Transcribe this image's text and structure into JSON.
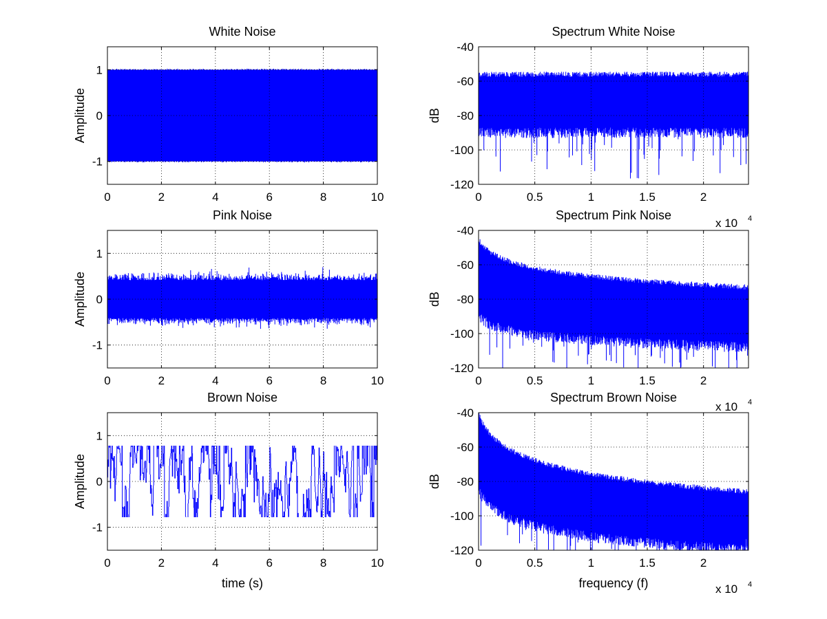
{
  "figure": {
    "background": "#ffffff",
    "series_color": "#0000ff"
  },
  "chart_data": [
    {
      "type": "line",
      "title": "White Noise",
      "xlabel": "",
      "ylabel": "Amplitude",
      "xlim": [
        0,
        10
      ],
      "ylim": [
        -1.5,
        1.5
      ],
      "xticks": [
        0,
        2,
        4,
        6,
        8,
        10
      ],
      "yticks": [
        -1,
        0,
        1
      ],
      "grid": true,
      "x_exponent": "",
      "series": [
        {
          "shape": "uniform",
          "min": -1.0,
          "max": 1.0
        }
      ]
    },
    {
      "type": "line",
      "title": "Spectrum White Noise",
      "xlabel": "",
      "ylabel": "dB",
      "xlim": [
        0,
        24000
      ],
      "ylim": [
        -120,
        -40
      ],
      "xticks": [
        0,
        5000,
        10000,
        15000,
        20000
      ],
      "xtick_labels": [
        "0",
        "0.5",
        "1",
        "1.5",
        "2"
      ],
      "yticks": [
        -120,
        -100,
        -80,
        -60,
        -40
      ],
      "grid": true,
      "x_exponent": "x 10",
      "x_exponent_power": "4",
      "series": [
        {
          "shape": "spectrum",
          "top_start": -56,
          "top_end": -56,
          "floor_start": -90,
          "floor_end": -90,
          "min_spike": -117
        }
      ]
    },
    {
      "type": "line",
      "title": "Pink Noise",
      "xlabel": "",
      "ylabel": "Amplitude",
      "xlim": [
        0,
        10
      ],
      "ylim": [
        -1.5,
        1.5
      ],
      "xticks": [
        0,
        2,
        4,
        6,
        8,
        10
      ],
      "yticks": [
        -1,
        0,
        1
      ],
      "grid": true,
      "x_exponent": "",
      "series": [
        {
          "shape": "gaussian",
          "envelope": 0.55,
          "peak_max": 0.7,
          "peak_min": -0.65
        }
      ]
    },
    {
      "type": "line",
      "title": "Spectrum Pink Noise",
      "xlabel": "",
      "ylabel": "dB",
      "xlim": [
        0,
        24000
      ],
      "ylim": [
        -120,
        -40
      ],
      "xticks": [
        0,
        5000,
        10000,
        15000,
        20000
      ],
      "xtick_labels": [
        "0",
        "0.5",
        "1",
        "1.5",
        "2"
      ],
      "yticks": [
        -120,
        -100,
        -80,
        -60,
        -40
      ],
      "grid": true,
      "x_exponent": "x 10",
      "x_exponent_power": "4",
      "series": [
        {
          "shape": "spectrum",
          "top_start": -45,
          "top_end": -73,
          "floor_start": -90,
          "floor_end": -108,
          "min_spike": -120
        }
      ]
    },
    {
      "type": "line",
      "title": "Brown Noise",
      "xlabel": "time (s)",
      "ylabel": "Amplitude",
      "xlim": [
        0,
        10
      ],
      "ylim": [
        -1.5,
        1.5
      ],
      "xticks": [
        0,
        2,
        4,
        6,
        8,
        10
      ],
      "yticks": [
        -1,
        0,
        1
      ],
      "grid": true,
      "x_exponent": "",
      "series": [
        {
          "shape": "clipped",
          "min": -0.78,
          "max": 0.78
        }
      ]
    },
    {
      "type": "line",
      "title": "Spectrum Brown Noise",
      "xlabel": "frequency (f)",
      "ylabel": "dB",
      "xlim": [
        0,
        24000
      ],
      "ylim": [
        -120,
        -40
      ],
      "xticks": [
        0,
        5000,
        10000,
        15000,
        20000
      ],
      "xtick_labels": [
        "0",
        "0.5",
        "1",
        "1.5",
        "2"
      ],
      "yticks": [
        -120,
        -100,
        -80,
        -60,
        -40
      ],
      "grid": true,
      "x_exponent": "x 10",
      "x_exponent_power": "4",
      "series": [
        {
          "shape": "spectrum",
          "top_start": -40,
          "top_end": -86,
          "floor_start": -85,
          "floor_end": -120,
          "min_spike": -120
        }
      ]
    }
  ]
}
